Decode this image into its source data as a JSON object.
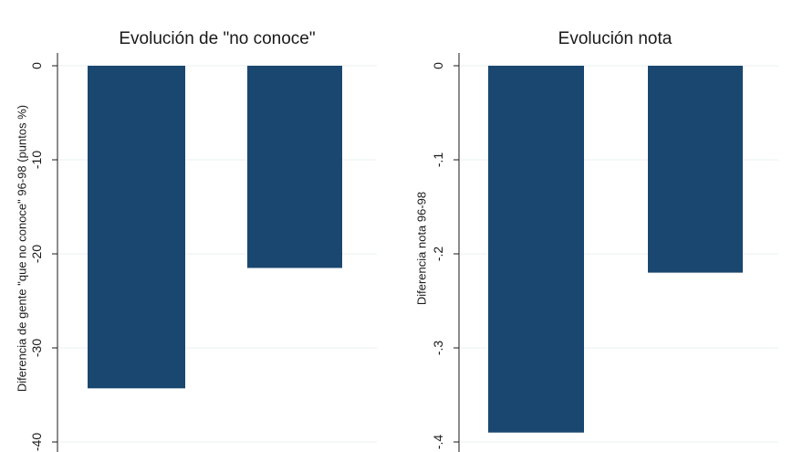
{
  "chart_data": [
    {
      "type": "bar",
      "title": "Evolución de \"no conoce\"",
      "xlabel": "",
      "ylabel": "Diferencia de gente \"que no conoce\" 96-98 (puntos %)",
      "ylim": [
        -40,
        0
      ],
      "yticks": [
        0,
        -10,
        -20,
        -30,
        -40
      ],
      "ytick_labels": [
        "0",
        "-10",
        "-20",
        "-30",
        "-40"
      ],
      "grid": true,
      "bar_color": "#1a476f",
      "values": [
        -34.3,
        -21.5
      ]
    },
    {
      "type": "bar",
      "title": "Evolución nota",
      "xlabel": "",
      "ylabel": "Diferencia nota 96-98",
      "ylim": [
        -0.4,
        0
      ],
      "yticks": [
        0,
        -0.1,
        -0.2,
        -0.3,
        -0.4
      ],
      "ytick_labels": [
        "0",
        "-.1",
        "-.2",
        "-.3",
        "-.4"
      ],
      "grid": true,
      "bar_color": "#1a476f",
      "values": [
        -0.39,
        -0.22
      ]
    }
  ]
}
